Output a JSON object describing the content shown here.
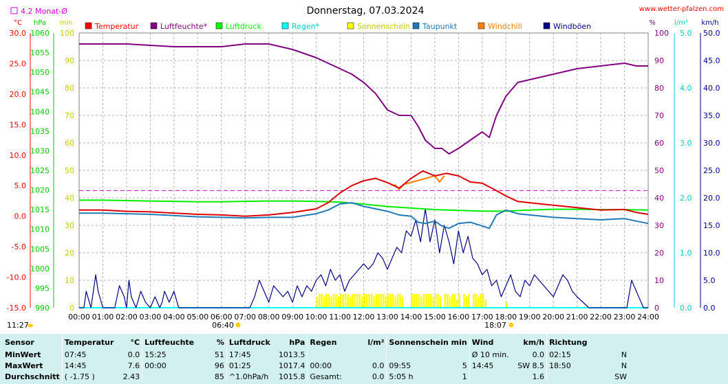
{
  "chart_data": {
    "type": "line",
    "title": "Donnerstag, 07.03.2024",
    "source": "www.wetter-pfalzen.com",
    "month_avg_label": "4.2 Monat-Ø",
    "month_avg_temp": 4.2,
    "sunrise": "06:40",
    "sunset": "18:07",
    "axis_units": {
      "temp": "°C",
      "pressure": "hPa",
      "min": "min",
      "percent": "%",
      "rain": "l/m²",
      "wind": "km/h"
    },
    "axes": {
      "temp": {
        "range": [
          -15,
          30
        ],
        "ticks": [
          "30.0",
          "25.0",
          "20.0",
          "15.0",
          "10.0",
          "5.0",
          "0.0",
          "-5.0",
          "-10.0",
          "-15.0"
        ]
      },
      "pressure": {
        "range": [
          990,
          1060
        ],
        "ticks": [
          "1060",
          "1055",
          "1050",
          "1045",
          "1040",
          "1035",
          "1030",
          "1025",
          "1020",
          "1015",
          "1010",
          "1005",
          "1000",
          "995",
          "990"
        ]
      },
      "minutes": {
        "range": [
          0,
          100
        ],
        "ticks": [
          "100",
          "90",
          "80",
          "70",
          "60",
          "50",
          "40",
          "30",
          "20",
          "10",
          "0"
        ]
      },
      "percent": {
        "range": [
          0,
          100
        ],
        "ticks": [
          "100",
          "90",
          "80",
          "70",
          "60",
          "50",
          "40",
          "30",
          "20",
          "10",
          "0"
        ]
      },
      "rain": {
        "range": [
          0,
          5
        ],
        "ticks": [
          "5.0",
          "4.0",
          "3.0",
          "2.0",
          "1.0",
          "0.0"
        ]
      },
      "wind": {
        "range": [
          0,
          50
        ],
        "ticks": [
          "50.0",
          "45.0",
          "40.0",
          "35.0",
          "30.0",
          "25.0",
          "20.0",
          "15.0",
          "10.0",
          "5.0",
          "0.0"
        ]
      }
    },
    "x_ticks": [
      "00:00",
      "01:00",
      "02:00",
      "03:00",
      "04:00",
      "05:00",
      "06:00",
      "07:00",
      "08:00",
      "09:00",
      "10:00",
      "11:00",
      "12:00",
      "13:00",
      "14:00",
      "15:00",
      "16:00",
      "17:00",
      "18:00",
      "19:00",
      "20:00",
      "21:00",
      "22:00",
      "23:00",
      "24:00"
    ],
    "legend": [
      {
        "name": "Temperatur",
        "color": "#ff0000"
      },
      {
        "name": "Luftfeuchte*",
        "color": "#800080"
      },
      {
        "name": "Luftdruck",
        "color": "#00ff00"
      },
      {
        "name": "Regen*",
        "color": "#00ffff"
      },
      {
        "name": "Sonnenschein",
        "color": "#ffff00"
      },
      {
        "name": "Taupunkt",
        "color": "#1f7ab8"
      },
      {
        "name": "Windchill",
        "color": "#ff8000"
      },
      {
        "name": "Windböen",
        "color": "#000080"
      }
    ],
    "series": [
      {
        "name": "Temperatur",
        "axis": "temp",
        "color": "#dd0000",
        "x": [
          0,
          1,
          2,
          3,
          4,
          5,
          6,
          7,
          8,
          9,
          10,
          10.5,
          11,
          11.5,
          12,
          12.5,
          13,
          13.5,
          14,
          14.5,
          15,
          15.5,
          16,
          16.5,
          17,
          17.5,
          18,
          18.5,
          19,
          20,
          21,
          22,
          23,
          23.5,
          24
        ],
        "y": [
          1.0,
          1.0,
          0.8,
          0.7,
          0.5,
          0.3,
          0.2,
          0.0,
          0.2,
          0.6,
          1.2,
          2.2,
          3.8,
          5.0,
          5.8,
          6.2,
          5.5,
          4.6,
          6.2,
          7.4,
          6.6,
          7.0,
          6.6,
          5.6,
          5.4,
          4.4,
          3.3,
          2.4,
          2.2,
          1.8,
          1.4,
          1.0,
          1.1,
          0.6,
          0.3
        ]
      },
      {
        "name": "Luftfeuchte*",
        "axis": "percent",
        "color": "#800080",
        "x": [
          0,
          1,
          2,
          3,
          4,
          5,
          6,
          7,
          8,
          9,
          10,
          10.5,
          11,
          11.5,
          12,
          12.5,
          13,
          13.5,
          14,
          14.3,
          14.6,
          15,
          15.3,
          15.6,
          16,
          16.5,
          17,
          17.3,
          17.6,
          18,
          18.5,
          19,
          20,
          21,
          22,
          23,
          23.5,
          24
        ],
        "y": [
          96,
          96,
          96,
          95.5,
          95,
          95,
          95,
          96,
          96,
          94,
          91,
          89,
          87,
          85,
          82,
          78,
          72,
          70,
          70,
          66,
          61,
          58,
          58,
          56,
          58,
          61,
          64,
          62,
          70,
          77,
          82,
          83,
          85,
          87,
          88,
          89,
          88,
          88
        ]
      },
      {
        "name": "Luftdruck",
        "axis": "pressure",
        "color": "#00ee00",
        "x": [
          0,
          1,
          2,
          3,
          4,
          5,
          6,
          7,
          8,
          9,
          10,
          11,
          12,
          13,
          14,
          15,
          16,
          17,
          18,
          19,
          20,
          21,
          22,
          23,
          24
        ],
        "y": [
          1017.4,
          1017.4,
          1017.3,
          1017.2,
          1017.1,
          1017.0,
          1017.0,
          1017.1,
          1017.2,
          1017.2,
          1017.1,
          1016.9,
          1016.4,
          1015.8,
          1015.4,
          1015.0,
          1014.8,
          1014.6,
          1014.6,
          1014.9,
          1015.1,
          1015.1,
          1015.0,
          1015.0,
          1014.9
        ]
      },
      {
        "name": "Taupunkt",
        "axis": "temp",
        "color": "#1f7ab8",
        "x": [
          0,
          1,
          2,
          3,
          4,
          5,
          6,
          7,
          8,
          9,
          10,
          10.5,
          11,
          11.5,
          12,
          12.5,
          13,
          13.5,
          14,
          14.3,
          14.6,
          15,
          15.3,
          15.6,
          16,
          16.5,
          17,
          17.3,
          17.6,
          18,
          18.5,
          19,
          20,
          21,
          22,
          23,
          23.5,
          24
        ],
        "y": [
          0.5,
          0.5,
          0.4,
          0.3,
          0.1,
          -0.1,
          -0.2,
          -0.3,
          -0.2,
          -0.2,
          0.4,
          1.0,
          2.0,
          2.2,
          1.6,
          1.2,
          0.8,
          0.2,
          0.0,
          -1.0,
          -1.2,
          -0.8,
          -1.6,
          -2.0,
          -1.2,
          -1.0,
          -1.6,
          -2.0,
          0.2,
          1.0,
          0.4,
          0.2,
          -0.2,
          -0.4,
          -0.6,
          -0.4,
          -0.8,
          -1.2
        ]
      },
      {
        "name": "Windchill",
        "axis": "temp",
        "color": "#ff8000",
        "x": [
          13.3,
          13.5,
          13.7,
          15.0,
          15.2,
          15.4
        ],
        "y": [
          5.2,
          4.4,
          5.2,
          6.6,
          5.6,
          6.6
        ]
      },
      {
        "name": "Windböen",
        "axis": "wind",
        "color": "#000080",
        "x": [
          0,
          0.2,
          0.3,
          0.5,
          0.7,
          0.8,
          1.0,
          1.2,
          1.5,
          1.7,
          1.9,
          2.0,
          2.1,
          2.2,
          2.4,
          2.6,
          2.8,
          3.0,
          3.2,
          3.4,
          3.5,
          3.6,
          3.8,
          4.0,
          4.2,
          4.4,
          4.6,
          4.8,
          5.0,
          5.5,
          6.0,
          6.5,
          7.0,
          7.2,
          7.4,
          7.6,
          7.8,
          8.0,
          8.2,
          8.4,
          8.6,
          8.8,
          9.0,
          9.2,
          9.4,
          9.6,
          9.8,
          10.0,
          10.2,
          10.4,
          10.6,
          10.8,
          11.0,
          11.2,
          11.4,
          11.6,
          11.8,
          12.0,
          12.2,
          12.4,
          12.6,
          12.8,
          13.0,
          13.2,
          13.4,
          13.6,
          13.8,
          14.0,
          14.2,
          14.4,
          14.6,
          14.8,
          15.0,
          15.2,
          15.4,
          15.6,
          15.8,
          16.0,
          16.2,
          16.4,
          16.6,
          16.8,
          17.0,
          17.2,
          17.4,
          17.6,
          17.8,
          18.0,
          18.2,
          18.4,
          18.6,
          18.8,
          19.0,
          19.2,
          19.4,
          19.6,
          19.8,
          20.0,
          20.2,
          20.4,
          20.6,
          20.8,
          21.0,
          21.5,
          22.0,
          22.5,
          23.0,
          23.1,
          23.3,
          23.5,
          23.7,
          23.8,
          24.0
        ],
        "y": [
          0,
          0,
          3,
          0,
          6,
          3,
          0,
          0,
          0,
          4,
          2,
          0,
          5,
          2,
          0,
          3,
          1,
          0,
          2,
          0,
          1,
          3,
          1,
          3,
          0,
          0,
          0,
          0,
          0,
          0,
          0,
          0,
          0,
          0,
          2,
          5,
          3,
          1,
          4,
          3,
          2,
          3,
          1,
          4,
          2,
          4,
          3,
          5,
          6,
          4,
          7,
          5,
          6,
          3,
          5,
          6,
          7,
          8,
          7,
          8,
          10,
          9,
          7,
          9,
          11,
          10,
          14,
          13,
          16,
          12,
          18,
          12,
          16,
          10,
          15,
          12,
          8,
          14,
          10,
          13,
          9,
          8,
          6,
          7,
          4,
          5,
          2,
          4,
          6,
          3,
          2,
          5,
          4,
          6,
          5,
          4,
          3,
          2,
          4,
          6,
          5,
          3,
          2,
          0,
          0,
          0,
          0,
          0,
          5,
          3,
          1,
          0,
          0
        ]
      }
    ],
    "sunshine_minutes": {
      "x": [
        10.0,
        10.1,
        10.2,
        10.3,
        10.4,
        10.5,
        10.6,
        10.7,
        10.8,
        10.9,
        11.0,
        11.1,
        11.2,
        11.3,
        11.4,
        11.5,
        11.6,
        11.7,
        11.8,
        11.9,
        12.0,
        12.1,
        12.2,
        12.3,
        12.4,
        12.5,
        12.6,
        12.7,
        12.8,
        12.9,
        13.0,
        13.1,
        13.2,
        13.3,
        13.4,
        13.5,
        13.6,
        14.0,
        14.1,
        14.2,
        14.3,
        14.4,
        14.5,
        14.6,
        14.7,
        14.8,
        14.9,
        15.0,
        15.1,
        15.2,
        15.4,
        15.5,
        15.6,
        15.7,
        15.8,
        15.9,
        16.0,
        16.2,
        16.3,
        16.4,
        16.6,
        16.7,
        16.8,
        16.9,
        17.0,
        17.1,
        18.0
      ],
      "y": [
        4,
        5,
        5,
        4,
        5,
        5,
        4,
        5,
        5,
        4,
        5,
        5,
        5,
        5,
        4,
        5,
        5,
        5,
        5,
        4,
        5,
        5,
        5,
        5,
        4,
        5,
        5,
        5,
        5,
        4,
        5,
        5,
        5,
        4,
        5,
        5,
        4,
        5,
        5,
        5,
        5,
        4,
        5,
        5,
        5,
        5,
        4,
        5,
        5,
        4,
        5,
        5,
        4,
        5,
        5,
        3,
        5,
        5,
        4,
        5,
        5,
        5,
        4,
        5,
        5,
        3,
        2
      ]
    },
    "rain": {
      "x": [
        0,
        24
      ],
      "y": [
        0,
        0
      ]
    }
  },
  "stats": {
    "headers": {
      "sensor": "Sensor",
      "temperature": "Temperatur",
      "temp_unit": "°C",
      "humidity": "Luftfeuchte",
      "hum_unit": "%",
      "pressure": "Luftdruck",
      "press_unit": "hPa",
      "rain": "Regen",
      "rain_unit": "l/m²",
      "sunshine": "Sonnenschein min",
      "wind": "Wind",
      "wind_unit": "km/h",
      "direction": "Richtung"
    },
    "rows": [
      {
        "label": "MinWert",
        "t_time": "07:45",
        "t_val": "0.0",
        "h_time": "15:25",
        "h_val": "51",
        "p_time": "17:45",
        "p_val": "1013.5",
        "r_time": "",
        "r_val": "",
        "s_time": "",
        "s_val": "",
        "w_time": "Ø 10 min.",
        "w_val": "0.0",
        "d_time": "02:15",
        "d_val": "N"
      },
      {
        "label": "MaxWert",
        "t_time": "14:45",
        "t_val": "7.6",
        "h_time": "00:00",
        "h_val": "96",
        "p_time": "01:25",
        "p_val": "1017.4",
        "r_time": "00:00",
        "r_val": "0.0",
        "s_time": "09:55",
        "s_val": "5",
        "w_time": "14:45",
        "w_val": "SW 8.5",
        "d_time": "18:50",
        "d_val": "N"
      },
      {
        "label": "Durchschnitt",
        "t_time": "( -1.75 )",
        "t_val": "2.43",
        "h_time": "",
        "h_val": "85",
        "p_time": "^1.0hPa/h",
        "p_val": "1015.8",
        "r_time": "Gesamt:",
        "r_val": "0.0",
        "s_time": "5:05 h",
        "s_val": "1",
        "w_time": "",
        "w_val": "1.6",
        "d_time": "",
        "d_val": "SW"
      }
    ]
  },
  "footer": {
    "clock": "11:27"
  }
}
